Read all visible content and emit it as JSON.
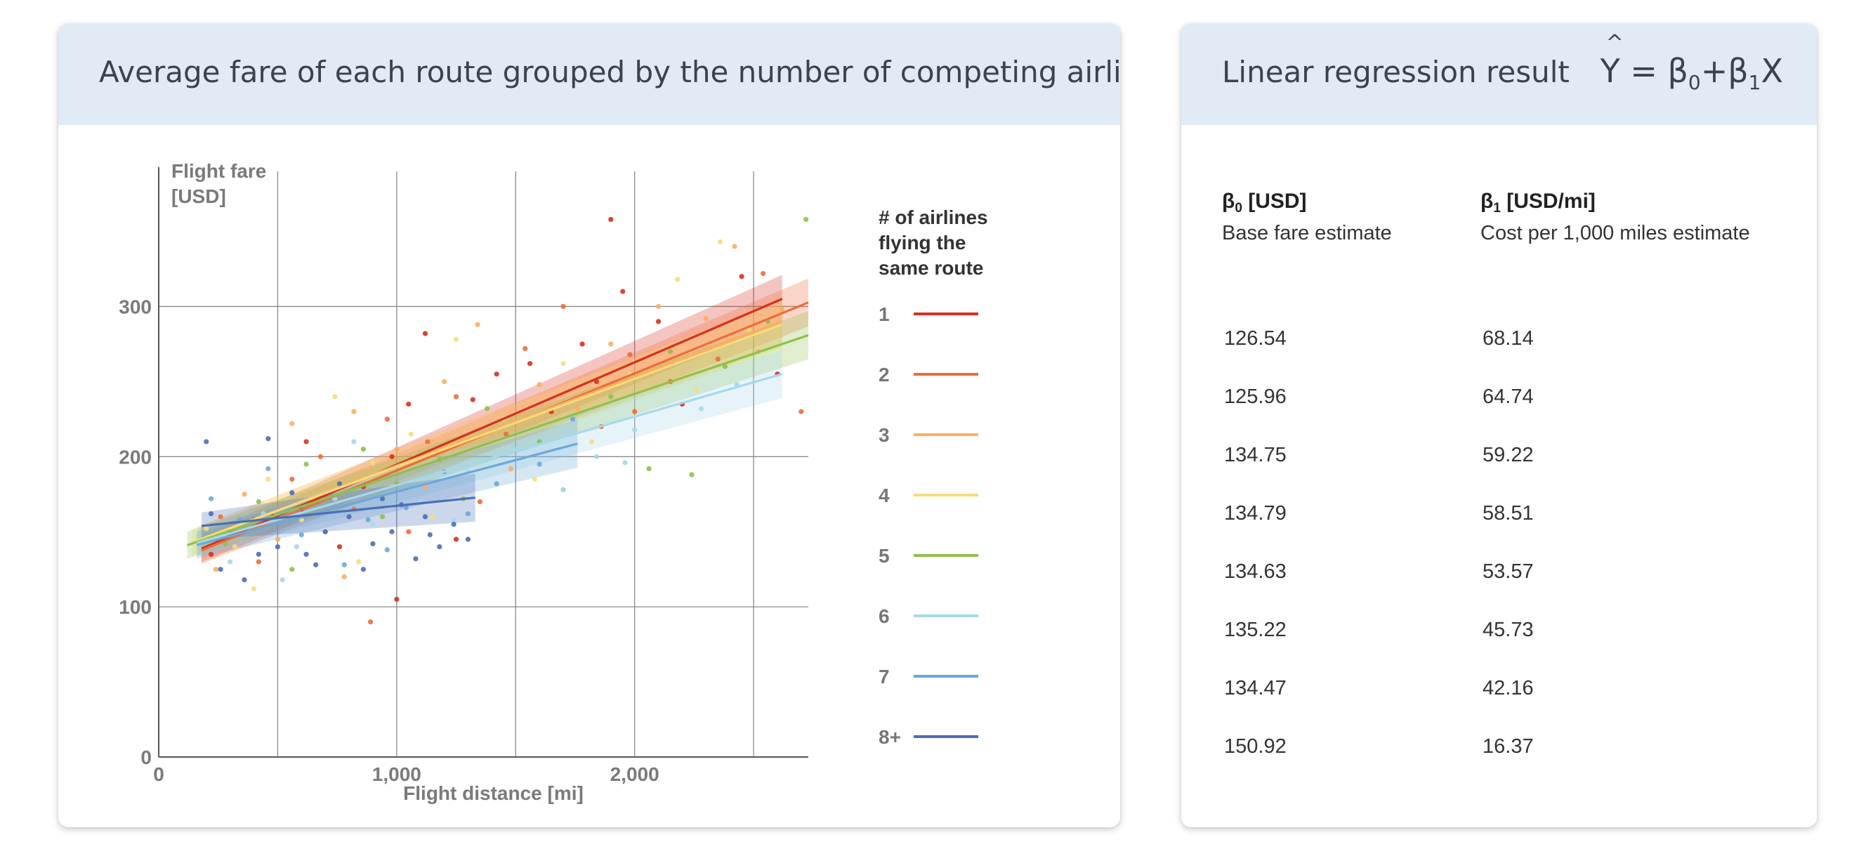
{
  "chart_card": {
    "title": "Average fare of each route grouped by the number of competing airlines"
  },
  "table_card": {
    "title": "Linear regression result",
    "formula": {
      "y": "Y",
      "hat": "^",
      "eq": " = β",
      "s0": "0",
      "plus": "+β",
      "s1": "1",
      "x": "X"
    },
    "col1": {
      "symbol": "β",
      "sub": "0",
      "unit": " [USD]",
      "desc": "Base fare estimate"
    },
    "col2": {
      "symbol": "β",
      "sub": "1",
      "unit": " [USD/mi]",
      "desc": "Cost per 1,000 miles estimate"
    },
    "rows": [
      {
        "b0": "126.54",
        "b1": "68.14"
      },
      {
        "b0": "125.96",
        "b1": "64.74"
      },
      {
        "b0": "134.75",
        "b1": "59.22"
      },
      {
        "b0": "134.79",
        "b1": "58.51"
      },
      {
        "b0": "134.63",
        "b1": "53.57"
      },
      {
        "b0": "135.22",
        "b1": "45.73"
      },
      {
        "b0": "134.47",
        "b1": "42.16"
      },
      {
        "b0": "150.92",
        "b1": "16.37"
      }
    ]
  },
  "chart_data": {
    "type": "scatter",
    "title": "",
    "xlabel": "Flight distance [mi]",
    "ylabel_lines": [
      "Flight fare",
      "[USD]"
    ],
    "xlim": [
      0,
      2730
    ],
    "ylim": [
      0,
      390
    ],
    "x_ticks": [
      0,
      1000,
      2000
    ],
    "x_tick_labels": [
      "0",
      "1,000",
      "2,000"
    ],
    "x_grid": [
      0,
      500,
      1000,
      1500,
      2000,
      2500
    ],
    "y_ticks": [
      0,
      100,
      200,
      300
    ],
    "y_tick_labels": [
      "0",
      "100",
      "200",
      "300"
    ],
    "grid": true,
    "legend_title_lines": [
      "# of airlines",
      "flying the",
      "same route"
    ],
    "legend_position": "right",
    "series": [
      {
        "name": "1",
        "color": "#d7301f",
        "b0": 126.54,
        "b1": 68.14,
        "x_range": [
          180,
          2620
        ]
      },
      {
        "name": "2",
        "color": "#ef6c3a",
        "b0": 125.96,
        "b1": 64.74,
        "x_range": [
          180,
          2730
        ]
      },
      {
        "name": "3",
        "color": "#fdae61",
        "b0": 134.75,
        "b1": 59.22,
        "x_range": [
          170,
          2620
        ]
      },
      {
        "name": "4",
        "color": "#f7dc7c",
        "b0": 134.79,
        "b1": 58.51,
        "x_range": [
          140,
          2620
        ]
      },
      {
        "name": "5",
        "color": "#8fc14a",
        "b0": 134.63,
        "b1": 53.57,
        "x_range": [
          120,
          2730
        ]
      },
      {
        "name": "6",
        "color": "#a6d8ea",
        "b0": 135.22,
        "b1": 45.73,
        "x_range": [
          160,
          2620
        ]
      },
      {
        "name": "7",
        "color": "#6aa9d8",
        "b0": 134.47,
        "b1": 42.16,
        "x_range": [
          160,
          1760
        ]
      },
      {
        "name": "8+",
        "color": "#4a6fb6",
        "b0": 150.92,
        "b1": 16.37,
        "x_range": [
          180,
          1330
        ]
      }
    ],
    "points": [
      {
        "s": 0,
        "x": 1900,
        "y": 358
      },
      {
        "s": 0,
        "x": 1950,
        "y": 310
      },
      {
        "s": 0,
        "x": 1780,
        "y": 275
      },
      {
        "s": 0,
        "x": 1420,
        "y": 255
      },
      {
        "s": 0,
        "x": 1120,
        "y": 282
      },
      {
        "s": 0,
        "x": 1050,
        "y": 235
      },
      {
        "s": 0,
        "x": 980,
        "y": 200
      },
      {
        "s": 0,
        "x": 860,
        "y": 180
      },
      {
        "s": 0,
        "x": 1000,
        "y": 105
      },
      {
        "s": 0,
        "x": 700,
        "y": 175
      },
      {
        "s": 0,
        "x": 620,
        "y": 210
      },
      {
        "s": 0,
        "x": 480,
        "y": 160
      },
      {
        "s": 0,
        "x": 300,
        "y": 150
      },
      {
        "s": 0,
        "x": 220,
        "y": 135
      },
      {
        "s": 0,
        "x": 1250,
        "y": 145
      },
      {
        "s": 0,
        "x": 1560,
        "y": 262
      },
      {
        "s": 0,
        "x": 1650,
        "y": 230
      },
      {
        "s": 0,
        "x": 1840,
        "y": 250
      },
      {
        "s": 0,
        "x": 2100,
        "y": 290
      },
      {
        "s": 0,
        "x": 2450,
        "y": 320
      },
      {
        "s": 0,
        "x": 2600,
        "y": 255
      },
      {
        "s": 0,
        "x": 2200,
        "y": 235
      },
      {
        "s": 0,
        "x": 1320,
        "y": 238
      },
      {
        "s": 0,
        "x": 760,
        "y": 140
      },
      {
        "s": 1,
        "x": 2540,
        "y": 322
      },
      {
        "s": 1,
        "x": 2700,
        "y": 230
      },
      {
        "s": 1,
        "x": 2350,
        "y": 265
      },
      {
        "s": 1,
        "x": 1980,
        "y": 268
      },
      {
        "s": 1,
        "x": 1700,
        "y": 300
      },
      {
        "s": 1,
        "x": 1540,
        "y": 272
      },
      {
        "s": 1,
        "x": 1250,
        "y": 240
      },
      {
        "s": 1,
        "x": 1130,
        "y": 210
      },
      {
        "s": 1,
        "x": 960,
        "y": 225
      },
      {
        "s": 1,
        "x": 820,
        "y": 165
      },
      {
        "s": 1,
        "x": 680,
        "y": 200
      },
      {
        "s": 1,
        "x": 560,
        "y": 185
      },
      {
        "s": 1,
        "x": 420,
        "y": 130
      },
      {
        "s": 1,
        "x": 260,
        "y": 160
      },
      {
        "s": 1,
        "x": 1350,
        "y": 170
      },
      {
        "s": 1,
        "x": 1460,
        "y": 215
      },
      {
        "s": 1,
        "x": 1860,
        "y": 220
      },
      {
        "s": 1,
        "x": 2150,
        "y": 250
      },
      {
        "s": 1,
        "x": 2000,
        "y": 230
      },
      {
        "s": 1,
        "x": 1050,
        "y": 150
      },
      {
        "s": 1,
        "x": 890,
        "y": 90
      },
      {
        "s": 2,
        "x": 2420,
        "y": 340
      },
      {
        "s": 2,
        "x": 2300,
        "y": 292
      },
      {
        "s": 2,
        "x": 2100,
        "y": 300
      },
      {
        "s": 2,
        "x": 1900,
        "y": 275
      },
      {
        "s": 2,
        "x": 1600,
        "y": 248
      },
      {
        "s": 2,
        "x": 1340,
        "y": 288
      },
      {
        "s": 2,
        "x": 1200,
        "y": 250
      },
      {
        "s": 2,
        "x": 1000,
        "y": 205
      },
      {
        "s": 2,
        "x": 820,
        "y": 230
      },
      {
        "s": 2,
        "x": 650,
        "y": 172
      },
      {
        "s": 2,
        "x": 500,
        "y": 145
      },
      {
        "s": 2,
        "x": 360,
        "y": 175
      },
      {
        "s": 2,
        "x": 240,
        "y": 125
      },
      {
        "s": 2,
        "x": 1480,
        "y": 192
      },
      {
        "s": 2,
        "x": 1760,
        "y": 232
      },
      {
        "s": 2,
        "x": 2520,
        "y": 270
      },
      {
        "s": 2,
        "x": 2620,
        "y": 298
      },
      {
        "s": 2,
        "x": 1120,
        "y": 180
      },
      {
        "s": 2,
        "x": 780,
        "y": 120
      },
      {
        "s": 2,
        "x": 560,
        "y": 222
      },
      {
        "s": 3,
        "x": 2360,
        "y": 343
      },
      {
        "s": 3,
        "x": 2180,
        "y": 318
      },
      {
        "s": 3,
        "x": 1980,
        "y": 255
      },
      {
        "s": 3,
        "x": 1700,
        "y": 262
      },
      {
        "s": 3,
        "x": 1450,
        "y": 225
      },
      {
        "s": 3,
        "x": 1250,
        "y": 278
      },
      {
        "s": 3,
        "x": 1060,
        "y": 215
      },
      {
        "s": 3,
        "x": 900,
        "y": 196
      },
      {
        "s": 3,
        "x": 740,
        "y": 240
      },
      {
        "s": 3,
        "x": 600,
        "y": 158
      },
      {
        "s": 3,
        "x": 460,
        "y": 185
      },
      {
        "s": 3,
        "x": 320,
        "y": 140
      },
      {
        "s": 3,
        "x": 200,
        "y": 152
      },
      {
        "s": 3,
        "x": 1580,
        "y": 185
      },
      {
        "s": 3,
        "x": 1820,
        "y": 210
      },
      {
        "s": 3,
        "x": 2260,
        "y": 245
      },
      {
        "s": 3,
        "x": 2480,
        "y": 285
      },
      {
        "s": 3,
        "x": 1150,
        "y": 160
      },
      {
        "s": 3,
        "x": 840,
        "y": 130
      },
      {
        "s": 3,
        "x": 400,
        "y": 112
      },
      {
        "s": 4,
        "x": 2720,
        "y": 358
      },
      {
        "s": 4,
        "x": 2560,
        "y": 290
      },
      {
        "s": 4,
        "x": 2240,
        "y": 188
      },
      {
        "s": 4,
        "x": 2060,
        "y": 192
      },
      {
        "s": 4,
        "x": 1900,
        "y": 240
      },
      {
        "s": 4,
        "x": 1600,
        "y": 210
      },
      {
        "s": 4,
        "x": 1380,
        "y": 232
      },
      {
        "s": 4,
        "x": 1180,
        "y": 198
      },
      {
        "s": 4,
        "x": 1000,
        "y": 182
      },
      {
        "s": 4,
        "x": 860,
        "y": 205
      },
      {
        "s": 4,
        "x": 700,
        "y": 150
      },
      {
        "s": 4,
        "x": 560,
        "y": 125
      },
      {
        "s": 4,
        "x": 420,
        "y": 170
      },
      {
        "s": 4,
        "x": 280,
        "y": 142
      },
      {
        "s": 4,
        "x": 1700,
        "y": 178
      },
      {
        "s": 4,
        "x": 2380,
        "y": 260
      },
      {
        "s": 4,
        "x": 940,
        "y": 160
      },
      {
        "s": 4,
        "x": 620,
        "y": 195
      },
      {
        "s": 4,
        "x": 1280,
        "y": 172
      },
      {
        "s": 4,
        "x": 2150,
        "y": 270
      },
      {
        "s": 5,
        "x": 2430,
        "y": 248
      },
      {
        "s": 5,
        "x": 2280,
        "y": 232
      },
      {
        "s": 5,
        "x": 2000,
        "y": 218
      },
      {
        "s": 5,
        "x": 1840,
        "y": 200
      },
      {
        "s": 5,
        "x": 1700,
        "y": 178
      },
      {
        "s": 5,
        "x": 1500,
        "y": 205
      },
      {
        "s": 5,
        "x": 1300,
        "y": 190
      },
      {
        "s": 5,
        "x": 1100,
        "y": 170
      },
      {
        "s": 5,
        "x": 900,
        "y": 155
      },
      {
        "s": 5,
        "x": 740,
        "y": 172
      },
      {
        "s": 5,
        "x": 580,
        "y": 140
      },
      {
        "s": 5,
        "x": 440,
        "y": 162
      },
      {
        "s": 5,
        "x": 300,
        "y": 130
      },
      {
        "s": 5,
        "x": 1960,
        "y": 196
      },
      {
        "s": 5,
        "x": 1240,
        "y": 158
      },
      {
        "s": 5,
        "x": 820,
        "y": 210
      },
      {
        "s": 5,
        "x": 520,
        "y": 118
      },
      {
        "s": 6,
        "x": 1740,
        "y": 225
      },
      {
        "s": 6,
        "x": 1600,
        "y": 195
      },
      {
        "s": 6,
        "x": 1420,
        "y": 182
      },
      {
        "s": 6,
        "x": 1200,
        "y": 190
      },
      {
        "s": 6,
        "x": 1040,
        "y": 166
      },
      {
        "s": 6,
        "x": 880,
        "y": 158
      },
      {
        "s": 6,
        "x": 720,
        "y": 175
      },
      {
        "s": 6,
        "x": 600,
        "y": 148
      },
      {
        "s": 6,
        "x": 460,
        "y": 192
      },
      {
        "s": 6,
        "x": 340,
        "y": 158
      },
      {
        "s": 6,
        "x": 220,
        "y": 172
      },
      {
        "s": 6,
        "x": 960,
        "y": 138
      },
      {
        "s": 6,
        "x": 1300,
        "y": 162
      },
      {
        "s": 6,
        "x": 780,
        "y": 128
      },
      {
        "s": 6,
        "x": 540,
        "y": 165
      },
      {
        "s": 7,
        "x": 1240,
        "y": 155
      },
      {
        "s": 7,
        "x": 1140,
        "y": 148
      },
      {
        "s": 7,
        "x": 1020,
        "y": 168
      },
      {
        "s": 7,
        "x": 900,
        "y": 142
      },
      {
        "s": 7,
        "x": 800,
        "y": 160
      },
      {
        "s": 7,
        "x": 700,
        "y": 150
      },
      {
        "s": 7,
        "x": 600,
        "y": 165
      },
      {
        "s": 7,
        "x": 500,
        "y": 140
      },
      {
        "s": 7,
        "x": 400,
        "y": 158
      },
      {
        "s": 7,
        "x": 300,
        "y": 148
      },
      {
        "s": 7,
        "x": 220,
        "y": 162
      },
      {
        "s": 7,
        "x": 460,
        "y": 212
      },
      {
        "s": 7,
        "x": 200,
        "y": 210
      },
      {
        "s": 7,
        "x": 660,
        "y": 128
      },
      {
        "s": 7,
        "x": 860,
        "y": 125
      },
      {
        "s": 7,
        "x": 1080,
        "y": 132
      },
      {
        "s": 7,
        "x": 360,
        "y": 118
      },
      {
        "s": 7,
        "x": 560,
        "y": 176
      },
      {
        "s": 7,
        "x": 760,
        "y": 182
      },
      {
        "s": 7,
        "x": 980,
        "y": 150
      },
      {
        "s": 7,
        "x": 1180,
        "y": 140
      },
      {
        "s": 7,
        "x": 260,
        "y": 125
      },
      {
        "s": 7,
        "x": 620,
        "y": 135
      },
      {
        "s": 7,
        "x": 940,
        "y": 172
      },
      {
        "s": 7,
        "x": 420,
        "y": 135
      },
      {
        "s": 7,
        "x": 1300,
        "y": 145
      },
      {
        "s": 7,
        "x": 1120,
        "y": 160
      }
    ]
  }
}
